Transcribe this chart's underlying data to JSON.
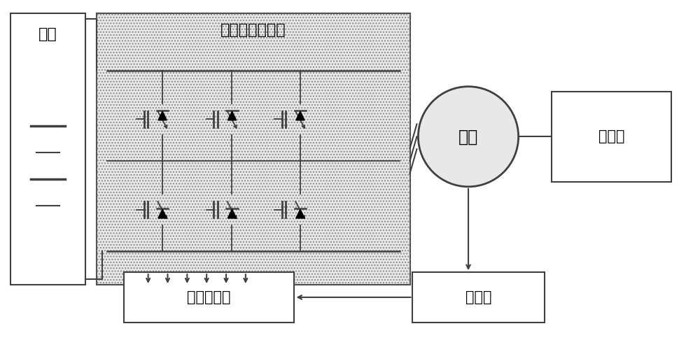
{
  "bg_color": "#ffffff",
  "dotted_fill": "#e8e8e8",
  "line_color": "#404040",
  "text_color": "#000000",
  "battery_label": "电池",
  "inverter_label": "电力电子逆变器",
  "motor_label": "电机",
  "gearbox_label": "变速箱",
  "controller_label": "电机控制器",
  "sensor_label": "传感器"
}
